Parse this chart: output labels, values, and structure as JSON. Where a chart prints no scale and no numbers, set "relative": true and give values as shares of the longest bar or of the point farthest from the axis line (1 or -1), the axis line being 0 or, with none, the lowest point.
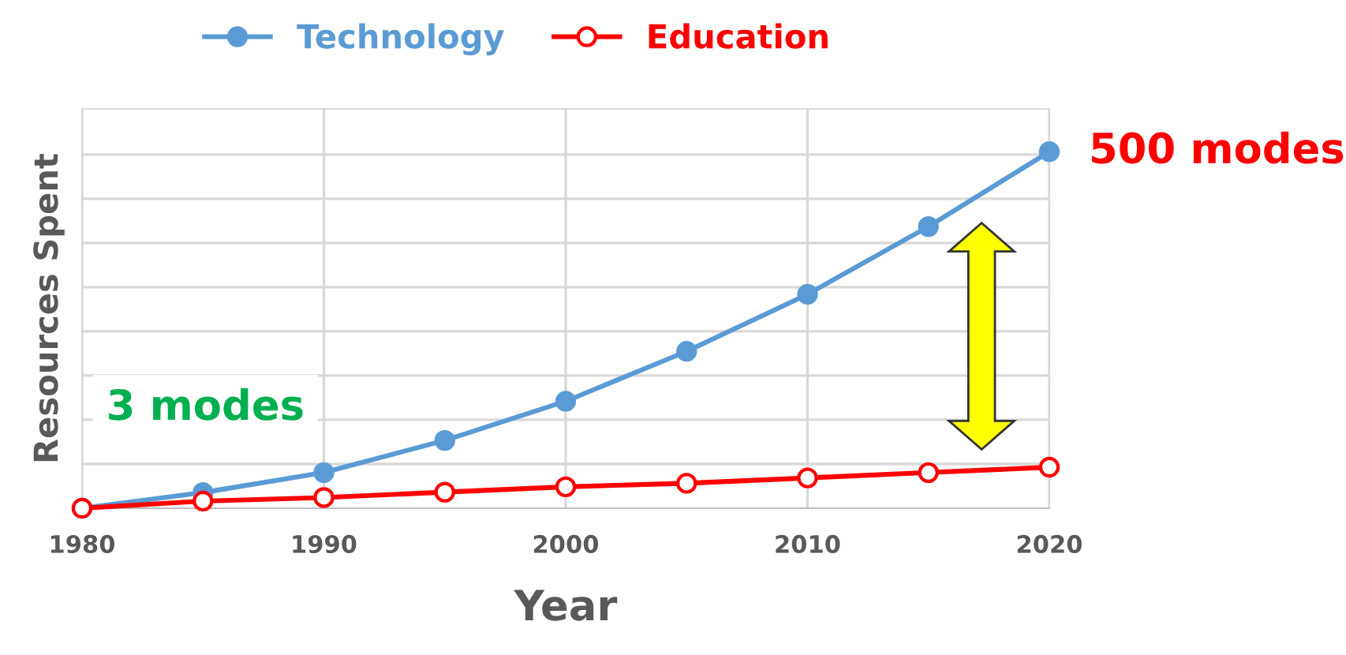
{
  "chart_data": {
    "type": "line",
    "relative": true,
    "xlabel": "Year",
    "ylabel": "Resources Spent",
    "x": [
      1980,
      1985,
      1990,
      1995,
      2000,
      2005,
      2010,
      2015,
      2020
    ],
    "xlim": [
      1980,
      2020
    ],
    "xticks": [
      1980,
      1990,
      2000,
      2010,
      2020
    ],
    "series": [
      {
        "name": "Technology",
        "color": "#5b9bd5",
        "marker": "circle",
        "values": [
          0,
          0.044,
          0.1,
          0.19,
          0.3,
          0.44,
          0.6,
          0.79,
          1
        ]
      },
      {
        "name": "Education",
        "color": "#ff0000",
        "marker": "circle",
        "values": [
          0,
          0.02,
          0.03,
          0.045,
          0.06,
          0.07,
          0.085,
          0.1,
          0.115
        ]
      }
    ],
    "annotations": [
      {
        "text": "500 modes",
        "x": 2020,
        "y": 1
      },
      "3 modes"
    ],
    "grid": true,
    "legend": "top",
    "line_style": "solid"
  }
}
